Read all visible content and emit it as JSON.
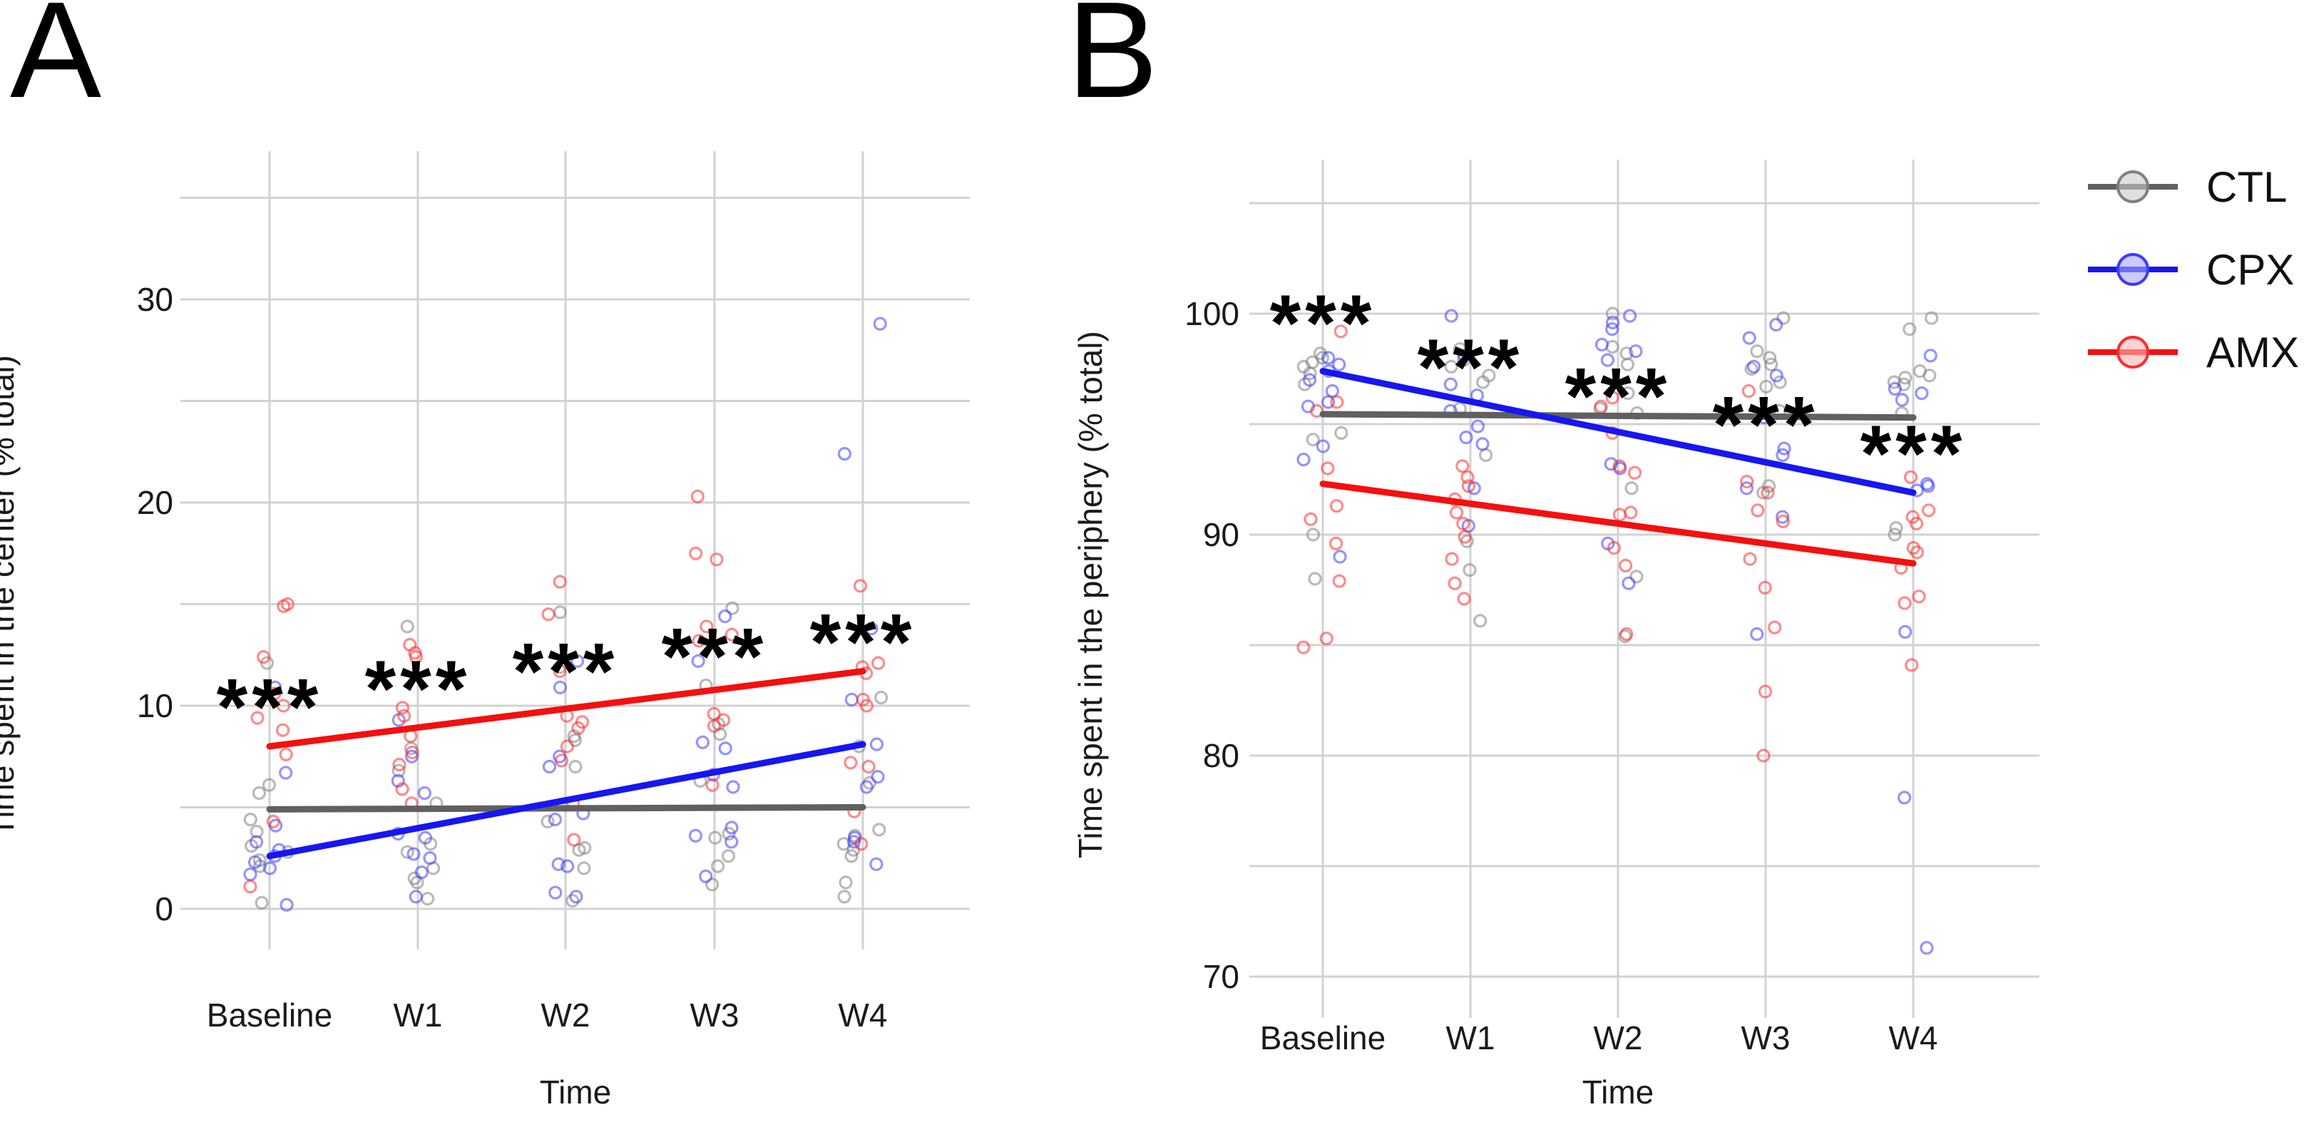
{
  "figure": {
    "panel_a_letter": "A",
    "panel_b_letter": "B",
    "legend": {
      "items": [
        {
          "id": "ctl",
          "label": "CTL",
          "line_color": "#606060",
          "point_color": "#808080",
          "fill_color": "#c9c9c9"
        },
        {
          "id": "cpx",
          "label": "CPX",
          "line_color": "#1616f0",
          "point_color": "#3a3aff",
          "fill_color": "#a8a8ff"
        },
        {
          "id": "amx",
          "label": "AMX",
          "line_color": "#f50f0f",
          "point_color": "#ff2a2a",
          "fill_color": "#ffb4b4"
        }
      ]
    },
    "theme": {
      "grid_color": "#d2d2d2",
      "text_color": "#1a1a1a",
      "star_color": "#000000",
      "background": "#ffffff"
    }
  },
  "chart_data": [
    {
      "type": "scatter",
      "panel": "A",
      "title": "",
      "ylabel": "Time spent in the center (% total)",
      "xlabel": "Time",
      "categories": [
        "Baseline",
        "W1",
        "W2",
        "W3",
        "W4"
      ],
      "ylim": [
        0,
        35
      ],
      "yticks": [
        0,
        10,
        20,
        30
      ],
      "minor_yticks": [
        5,
        15,
        25,
        35
      ],
      "grid": true,
      "legend_position": "right",
      "significance": {
        "label": "***",
        "values": [
          10.4,
          11.3,
          12.15,
          12.9,
          13.6
        ]
      },
      "series": [
        {
          "name": "CTL",
          "trend": [
            4.9,
            5.0
          ],
          "points": [
            [
              12.1,
              6.1,
              5.7,
              4.4,
              3.8,
              3.1,
              2.8,
              2.4,
              2.1,
              0.3
            ],
            [
              13.9,
              7.9,
              6.8,
              5.2,
              3.2,
              2.8,
              2.0,
              1.5,
              1.3,
              0.5
            ],
            [
              14.6,
              11.9,
              8.5,
              8.3,
              7.0,
              4.3,
              3.0,
              2.9,
              2.0,
              0.4
            ],
            [
              14.8,
              11.0,
              9.1,
              8.6,
              6.3,
              3.7,
              3.5,
              2.6,
              2.1,
              1.2
            ],
            [
              10.4,
              8.0,
              6.2,
              3.9,
              3.6,
              3.2,
              2.9,
              2.6,
              1.3,
              0.6
            ]
          ]
        },
        {
          "name": "CPX",
          "trend": [
            2.6,
            8.1
          ],
          "points": [
            [
              10.9,
              6.7,
              4.1,
              3.3,
              2.9,
              2.6,
              2.3,
              2.0,
              1.7,
              0.2
            ],
            [
              9.3,
              7.5,
              6.3,
              5.7,
              3.7,
              3.5,
              2.7,
              2.5,
              1.8,
              0.6
            ],
            [
              12.2,
              10.9,
              7.5,
              7.0,
              4.7,
              4.4,
              2.2,
              2.1,
              0.8,
              0.6
            ],
            [
              14.4,
              12.2,
              8.2,
              7.9,
              6.6,
              6.0,
              4.0,
              3.6,
              3.3,
              1.6
            ],
            [
              28.8,
              22.4,
              13.8,
              10.3,
              8.1,
              6.5,
              6.0,
              3.5,
              3.3,
              2.2
            ]
          ]
        },
        {
          "name": "AMX",
          "trend": [
            8.0,
            11.7
          ],
          "points": [
            [
              15.0,
              14.9,
              12.4,
              10.6,
              10.0,
              9.4,
              8.8,
              7.6,
              4.3,
              1.1
            ],
            [
              13.0,
              12.6,
              12.4,
              9.9,
              9.5,
              8.5,
              7.7,
              7.1,
              5.9,
              5.2
            ],
            [
              16.1,
              14.5,
              11.7,
              9.5,
              9.2,
              8.9,
              8.0,
              7.3,
              5.2,
              3.4
            ],
            [
              20.3,
              17.5,
              17.2,
              13.9,
              13.5,
              13.2,
              9.6,
              9.3,
              9.0,
              6.1
            ],
            [
              15.9,
              12.1,
              11.9,
              11.6,
              10.3,
              10.0,
              7.2,
              7.0,
              4.8,
              3.2
            ]
          ]
        }
      ]
    },
    {
      "type": "scatter",
      "panel": "B",
      "title": "",
      "ylabel": "Time spent in the periphery (% total)",
      "xlabel": "Time",
      "categories": [
        "Baseline",
        "W1",
        "W2",
        "W3",
        "W4"
      ],
      "ylim": [
        70,
        105
      ],
      "yticks": [
        70,
        80,
        90,
        100
      ],
      "minor_yticks": [
        75,
        85,
        95,
        105
      ],
      "grid": true,
      "legend_position": "right",
      "significance": {
        "label": "***",
        "values": [
          100.0,
          98.0,
          96.7,
          95.4,
          94.1
        ]
      },
      "series": [
        {
          "name": "CTL",
          "trend": [
            95.45,
            95.3
          ],
          "points": [
            [
              98.2,
              98.0,
              97.8,
              97.6,
              97.3,
              96.8,
              94.6,
              94.3,
              90.0,
              88.0
            ],
            [
              98.4,
              97.9,
              97.6,
              97.2,
              96.9,
              95.7,
              93.6,
              89.7,
              88.4,
              86.1
            ],
            [
              100.0,
              98.5,
              98.2,
              97.7,
              96.4,
              95.7,
              95.5,
              92.1,
              88.1,
              85.4
            ],
            [
              99.8,
              98.3,
              98.0,
              97.7,
              97.5,
              96.9,
              96.7,
              95.6,
              92.2,
              91.9
            ],
            [
              99.8,
              99.3,
              97.4,
              97.2,
              97.1,
              96.9,
              96.8,
              95.5,
              90.3,
              90.0
            ]
          ]
        },
        {
          "name": "CPX",
          "trend": [
            97.4,
            91.9
          ],
          "points": [
            [
              98.0,
              97.7,
              97.4,
              97.0,
              96.5,
              96.0,
              95.8,
              94.0,
              93.4,
              89.0
            ],
            [
              99.9,
              98.1,
              96.8,
              96.3,
              95.6,
              94.9,
              94.4,
              94.1,
              92.1,
              90.4
            ],
            [
              99.9,
              99.6,
              99.3,
              98.6,
              98.3,
              97.9,
              93.2,
              93.0,
              89.6,
              87.8
            ],
            [
              99.5,
              98.9,
              97.6,
              97.2,
              95.3,
              93.9,
              93.6,
              92.1,
              90.8,
              85.5
            ],
            [
              98.1,
              96.6,
              96.4,
              96.1,
              92.3,
              92.2,
              92.0,
              85.6,
              78.1,
              71.3
            ]
          ]
        },
        {
          "name": "AMX",
          "trend": [
            92.3,
            88.7
          ],
          "points": [
            [
              99.2,
              96.0,
              95.6,
              93.0,
              91.3,
              90.7,
              89.6,
              87.9,
              85.3,
              84.9
            ],
            [
              93.1,
              92.6,
              92.2,
              91.6,
              91.0,
              90.5,
              89.9,
              88.9,
              87.8,
              87.1
            ],
            [
              96.2,
              95.8,
              94.6,
              93.1,
              92.8,
              91.0,
              90.9,
              89.4,
              88.6,
              85.5
            ],
            [
              96.5,
              92.4,
              91.9,
              91.1,
              90.6,
              88.9,
              87.6,
              85.8,
              82.9,
              80.0
            ],
            [
              92.6,
              91.1,
              90.8,
              90.5,
              89.4,
              89.2,
              88.5,
              87.2,
              86.9,
              84.1
            ]
          ]
        }
      ]
    }
  ]
}
